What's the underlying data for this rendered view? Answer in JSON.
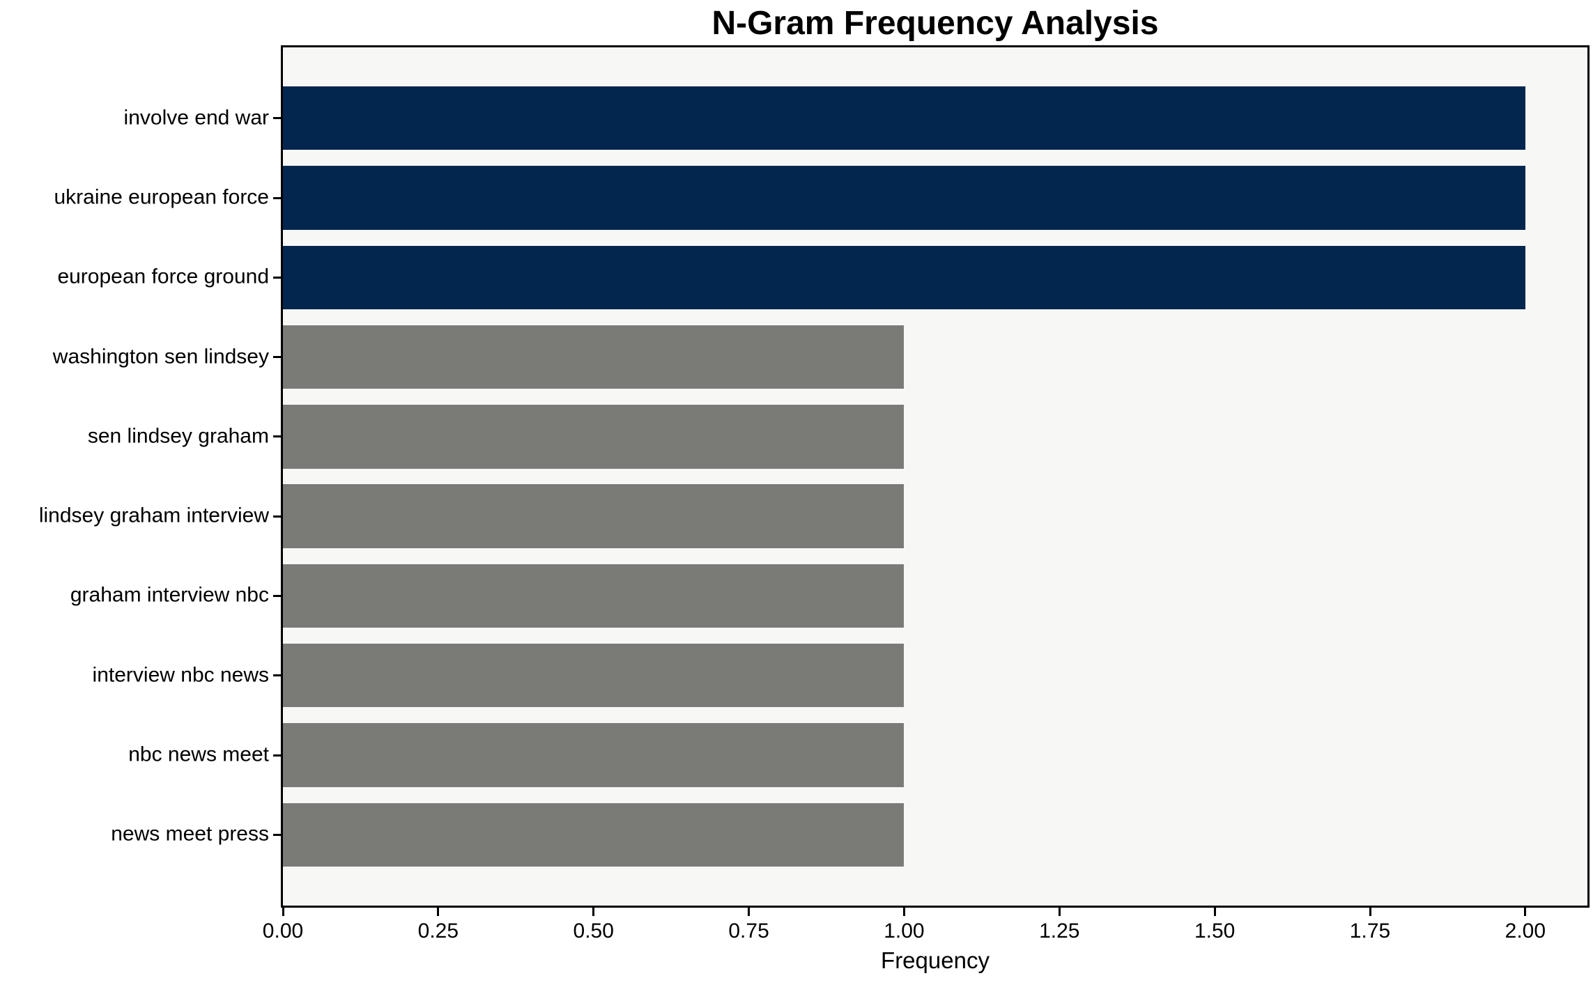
{
  "title": "N-Gram Frequency Analysis",
  "chart_data": {
    "type": "bar",
    "orientation": "horizontal",
    "title": "N-Gram Frequency Analysis",
    "xlabel": "Frequency",
    "ylabel": "",
    "categories": [
      "involve end war",
      "ukraine european force",
      "european force ground",
      "washington sen lindsey",
      "sen lindsey graham",
      "lindsey graham interview",
      "graham interview nbc",
      "interview nbc news",
      "nbc news meet",
      "news meet press"
    ],
    "values": [
      2,
      2,
      2,
      1,
      1,
      1,
      1,
      1,
      1,
      1
    ],
    "bar_colors": [
      "#03264f",
      "#03264f",
      "#03264f",
      "#7a7a77",
      "#7a7a77",
      "#7a7a77",
      "#7a7a77",
      "#7a7a77",
      "#7a7a77",
      "#7a7a77"
    ],
    "xlim": [
      0,
      2.1
    ],
    "x_ticks": [
      {
        "value": 0.0,
        "label": "0.00"
      },
      {
        "value": 0.25,
        "label": "0.25"
      },
      {
        "value": 0.5,
        "label": "0.50"
      },
      {
        "value": 0.75,
        "label": "0.75"
      },
      {
        "value": 1.0,
        "label": "1.00"
      },
      {
        "value": 1.25,
        "label": "1.25"
      },
      {
        "value": 1.5,
        "label": "1.50"
      },
      {
        "value": 1.75,
        "label": "1.75"
      },
      {
        "value": 2.0,
        "label": "2.00"
      }
    ],
    "grid": false,
    "legend_position": "none",
    "plot_background": "#f7f7f6",
    "page_background": "#ffffff",
    "spine_color": "#000000",
    "bar_height_fraction": 0.8,
    "axis_margin_fraction": 0.05
  }
}
